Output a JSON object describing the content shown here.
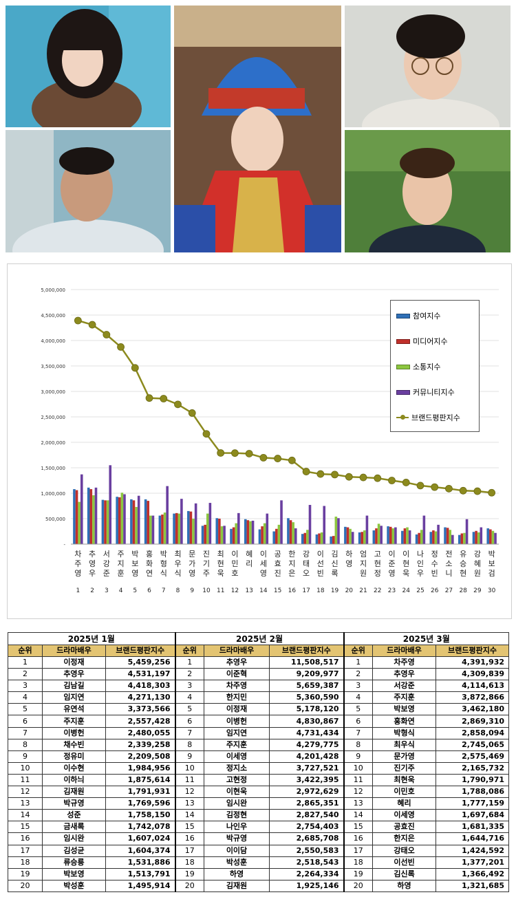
{
  "chart_data": {
    "type": "bar",
    "categories": [
      "차주영",
      "추영우",
      "서강준",
      "주지훈",
      "박보영",
      "홍화연",
      "박형식",
      "최우식",
      "문가영",
      "진기주",
      "최현욱",
      "이민호",
      "혜리",
      "이세영",
      "공효진",
      "한지은",
      "강태오",
      "이선빈",
      "김신록",
      "하영",
      "엄지원",
      "고현정",
      "이준영",
      "이현욱",
      "나인우",
      "정수빈",
      "전소니",
      "유승현",
      "강혜원",
      "박보검"
    ],
    "rank_labels": [
      "1",
      "2",
      "3",
      "4",
      "5",
      "6",
      "7",
      "8",
      "9",
      "10",
      "11",
      "12",
      "13",
      "14",
      "15",
      "16",
      "17",
      "18",
      "19",
      "20",
      "21",
      "22",
      "23",
      "24",
      "25",
      "26",
      "27",
      "28",
      "29",
      "30"
    ],
    "y_ticks": [
      "-",
      "500,000",
      "1,000,000",
      "1,500,000",
      "2,000,000",
      "2,500,000",
      "3,000,000",
      "3,500,000",
      "4,000,000",
      "4,500,000",
      "5,000,000"
    ],
    "ylim": [
      0,
      5000000
    ],
    "series": [
      {
        "name": "참여지수",
        "kind": "bar",
        "color": "#2f6fb6",
        "values": [
          1080000,
          1110000,
          870000,
          930000,
          880000,
          880000,
          560000,
          600000,
          650000,
          360000,
          510000,
          300000,
          490000,
          290000,
          250000,
          510000,
          200000,
          190000,
          150000,
          340000,
          230000,
          270000,
          350000,
          260000,
          190000,
          240000,
          330000,
          180000,
          240000,
          310000
        ]
      },
      {
        "name": "미디어지수",
        "kind": "bar",
        "color": "#c0302b",
        "values": [
          1060000,
          1080000,
          860000,
          920000,
          860000,
          850000,
          580000,
          610000,
          640000,
          380000,
          500000,
          330000,
          470000,
          350000,
          300000,
          470000,
          220000,
          210000,
          160000,
          330000,
          240000,
          310000,
          340000,
          310000,
          220000,
          270000,
          320000,
          210000,
          260000,
          290000
        ]
      },
      {
        "name": "소통지수",
        "kind": "bar",
        "color": "#8cc63f",
        "values": [
          830000,
          960000,
          860000,
          1010000,
          730000,
          560000,
          620000,
          600000,
          500000,
          600000,
          350000,
          410000,
          450000,
          410000,
          380000,
          430000,
          280000,
          230000,
          540000,
          300000,
          270000,
          400000,
          310000,
          330000,
          280000,
          250000,
          280000,
          220000,
          230000,
          260000
        ]
      },
      {
        "name": "커뮤니티지수",
        "kind": "bar",
        "color": "#6a3fa0",
        "values": [
          1370000,
          1110000,
          1550000,
          980000,
          950000,
          560000,
          1140000,
          890000,
          800000,
          810000,
          360000,
          610000,
          460000,
          600000,
          860000,
          310000,
          770000,
          750000,
          510000,
          240000,
          560000,
          360000,
          330000,
          270000,
          560000,
          380000,
          180000,
          490000,
          330000,
          220000
        ]
      },
      {
        "name": "브랜드평판지수",
        "kind": "line",
        "color": "#8c8a1e",
        "values": [
          4391932,
          4309839,
          4114613,
          3872866,
          3462180,
          2869310,
          2858094,
          2745065,
          2575469,
          2165732,
          1790971,
          1788086,
          1777159,
          1697684,
          1681335,
          1644716,
          1424592,
          1377201,
          1366492,
          1321685,
          1310000,
          1295000,
          1250000,
          1210000,
          1150000,
          1120000,
          1090000,
          1050000,
          1040000,
          1010000
        ]
      }
    ]
  },
  "table": {
    "months": [
      "2025년 1월",
      "2025년 2월",
      "2025년 3월"
    ],
    "headers": [
      "순위",
      "드라마배우",
      "브랜드평판지수"
    ],
    "jan": [
      [
        "1",
        "이정재",
        "5,459,256"
      ],
      [
        "2",
        "추영우",
        "4,531,197"
      ],
      [
        "3",
        "김남길",
        "4,418,303"
      ],
      [
        "4",
        "임지연",
        "4,271,130"
      ],
      [
        "5",
        "유연석",
        "3,373,566"
      ],
      [
        "6",
        "주지훈",
        "2,557,428"
      ],
      [
        "7",
        "이병헌",
        "2,480,055"
      ],
      [
        "8",
        "채수빈",
        "2,339,258"
      ],
      [
        "9",
        "정유미",
        "2,209,508"
      ],
      [
        "10",
        "이수현",
        "1,984,956"
      ],
      [
        "11",
        "이하늬",
        "1,875,614"
      ],
      [
        "12",
        "김재원",
        "1,791,931"
      ],
      [
        "13",
        "박규영",
        "1,769,596"
      ],
      [
        "14",
        "성준",
        "1,758,150"
      ],
      [
        "15",
        "금새록",
        "1,742,078"
      ],
      [
        "16",
        "임시완",
        "1,607,024"
      ],
      [
        "17",
        "김성균",
        "1,604,374"
      ],
      [
        "18",
        "류승룡",
        "1,531,886"
      ],
      [
        "19",
        "박보영",
        "1,513,791"
      ],
      [
        "20",
        "박성훈",
        "1,495,914"
      ]
    ],
    "feb": [
      [
        "1",
        "추영우",
        "11,508,517"
      ],
      [
        "2",
        "이준혁",
        "9,209,977"
      ],
      [
        "3",
        "차주영",
        "5,659,387"
      ],
      [
        "4",
        "한지민",
        "5,360,590"
      ],
      [
        "5",
        "이정재",
        "5,178,120"
      ],
      [
        "6",
        "이병헌",
        "4,830,867"
      ],
      [
        "7",
        "임지연",
        "4,731,434"
      ],
      [
        "8",
        "주지훈",
        "4,279,775"
      ],
      [
        "9",
        "이세영",
        "4,201,428"
      ],
      [
        "10",
        "정지소",
        "3,727,521"
      ],
      [
        "11",
        "고현정",
        "3,422,395"
      ],
      [
        "12",
        "이현욱",
        "2,972,629"
      ],
      [
        "13",
        "임시완",
        "2,865,351"
      ],
      [
        "14",
        "김정현",
        "2,827,540"
      ],
      [
        "15",
        "나인우",
        "2,754,403"
      ],
      [
        "16",
        "박규영",
        "2,685,708"
      ],
      [
        "17",
        "이이담",
        "2,550,583"
      ],
      [
        "18",
        "박성훈",
        "2,518,543"
      ],
      [
        "19",
        "하영",
        "2,264,334"
      ],
      [
        "20",
        "김재원",
        "1,925,146"
      ]
    ],
    "mar": [
      [
        "1",
        "차주영",
        "4,391,932"
      ],
      [
        "2",
        "추영우",
        "4,309,839"
      ],
      [
        "3",
        "서강준",
        "4,114,613"
      ],
      [
        "4",
        "주지훈",
        "3,872,866"
      ],
      [
        "5",
        "박보영",
        "3,462,180"
      ],
      [
        "6",
        "홍화연",
        "2,869,310"
      ],
      [
        "7",
        "박형식",
        "2,858,094"
      ],
      [
        "8",
        "최우식",
        "2,745,065"
      ],
      [
        "9",
        "문가영",
        "2,575,469"
      ],
      [
        "10",
        "진기주",
        "2,165,732"
      ],
      [
        "11",
        "최현욱",
        "1,790,971"
      ],
      [
        "12",
        "이민호",
        "1,788,086"
      ],
      [
        "13",
        "혜리",
        "1,777,159"
      ],
      [
        "14",
        "이세영",
        "1,697,684"
      ],
      [
        "15",
        "공효진",
        "1,681,335"
      ],
      [
        "16",
        "한지은",
        "1,644,716"
      ],
      [
        "17",
        "강태오",
        "1,424,592"
      ],
      [
        "18",
        "이선빈",
        "1,377,201"
      ],
      [
        "19",
        "김신록",
        "1,366,492"
      ],
      [
        "20",
        "하영",
        "1,321,685"
      ]
    ]
  }
}
